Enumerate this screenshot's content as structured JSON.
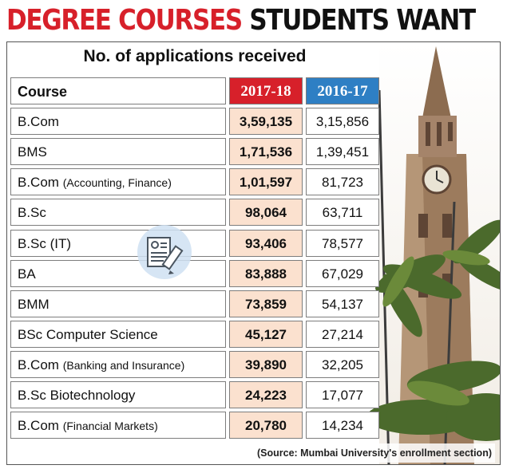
{
  "headline": {
    "red": "DEGREE COURSES",
    "black": "STUDENTS WANT"
  },
  "colors": {
    "accent_red": "#d7202a",
    "accent_blue": "#2e7fc4",
    "highlight": "#fbe1cf"
  },
  "chart_data": {
    "type": "table",
    "title": "No. of applications received",
    "columns": [
      "Course",
      "2017-18",
      "2016-17"
    ],
    "rows": [
      {
        "course_main": "B.Com",
        "course_detail": "",
        "y2017_18": "3,59,135",
        "y2016_17": "3,15,856"
      },
      {
        "course_main": "BMS",
        "course_detail": "",
        "y2017_18": "1,71,536",
        "y2016_17": "1,39,451"
      },
      {
        "course_main": "B.Com",
        "course_detail": "(Accounting, Finance)",
        "y2017_18": "1,01,597",
        "y2016_17": "81,723"
      },
      {
        "course_main": "B.Sc",
        "course_detail": "",
        "y2017_18": "98,064",
        "y2016_17": "63,711"
      },
      {
        "course_main": "B.Sc (IT)",
        "course_detail": "",
        "y2017_18": "93,406",
        "y2016_17": "78,577"
      },
      {
        "course_main": "BA",
        "course_detail": "",
        "y2017_18": "83,888",
        "y2016_17": "67,029"
      },
      {
        "course_main": "BMM",
        "course_detail": "",
        "y2017_18": "73,859",
        "y2016_17": "54,137"
      },
      {
        "course_main": "BSc Computer Science",
        "course_detail": "",
        "y2017_18": "45,127",
        "y2016_17": "27,214"
      },
      {
        "course_main": "B.Com",
        "course_detail": "(Banking and Insurance)",
        "y2017_18": "39,890",
        "y2016_17": "32,205"
      },
      {
        "course_main": "B.Sc Biotechnology",
        "course_detail": "",
        "y2017_18": "24,223",
        "y2016_17": "17,077"
      },
      {
        "course_main": "B.Com",
        "course_detail": "(Financial Markets)",
        "y2017_18": "20,780",
        "y2016_17": "14,234"
      }
    ]
  },
  "source": "(Source: Mumbai University's enrollment section)",
  "icons": {
    "badge": "resume-document-icon",
    "illustration": "clock-tower-illustration"
  }
}
